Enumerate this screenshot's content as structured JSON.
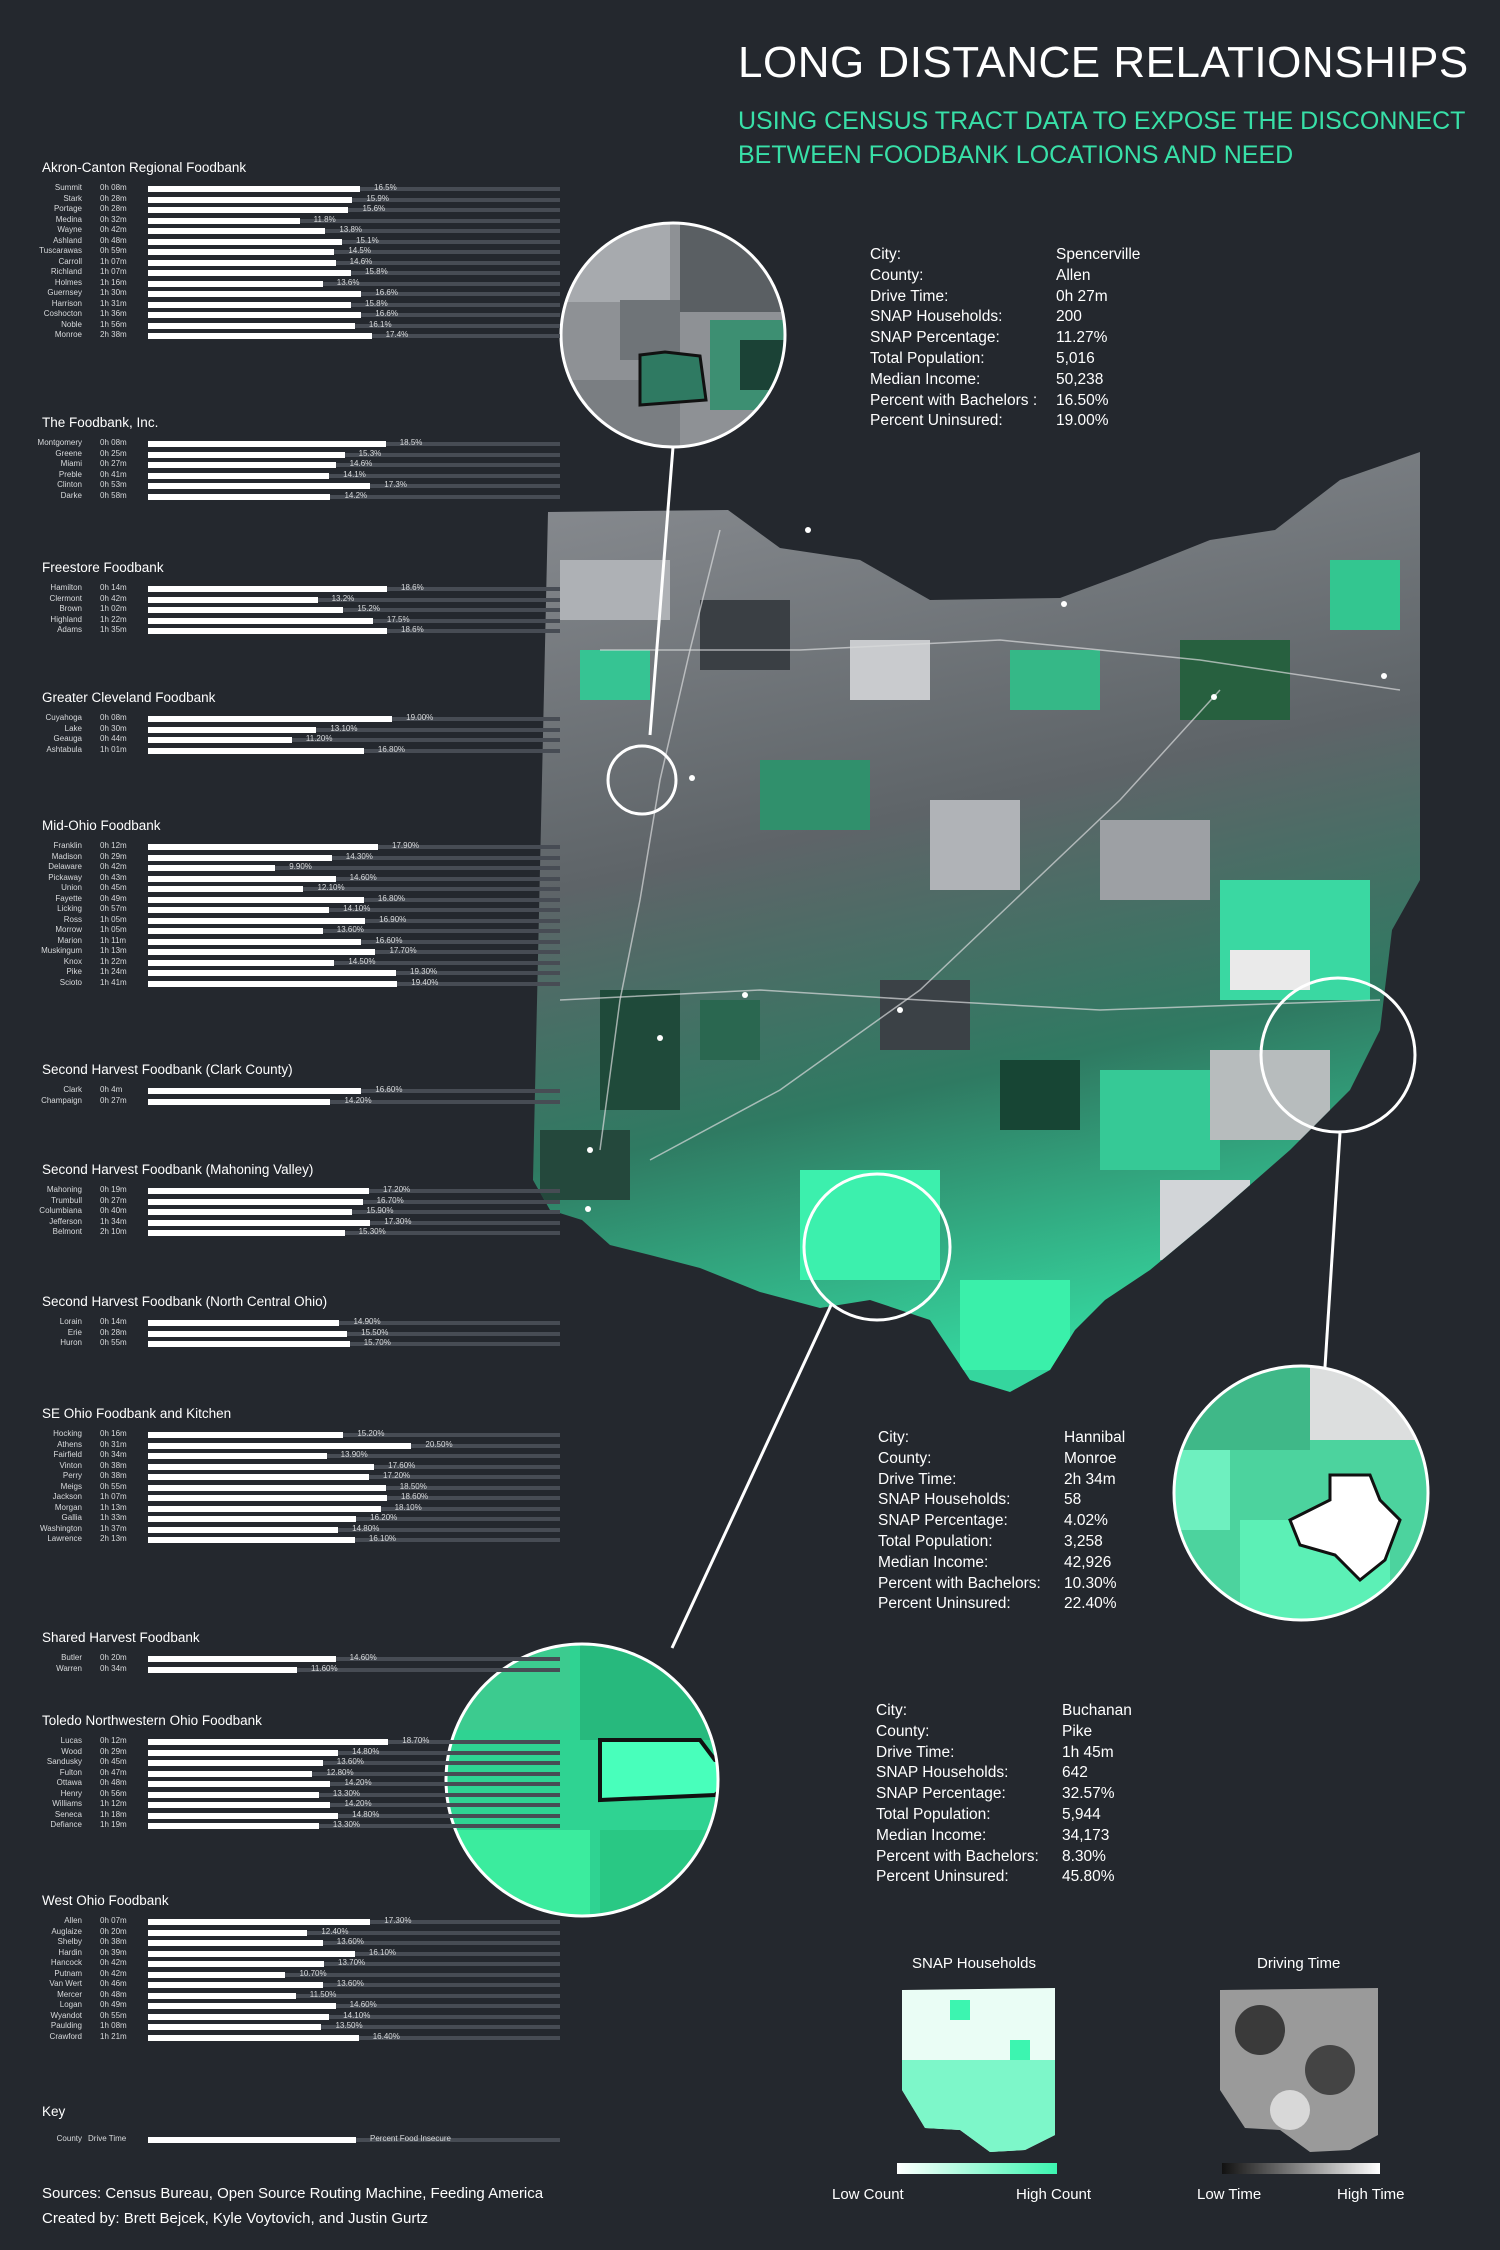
{
  "title": "LONG DISTANCE RELATIONSHIPS",
  "subtitle_lines": [
    "USING CENSUS TRACT DATA TO EXPOSE THE DISCONNECT",
    "BETWEEN FOODBANK LOCATIONS AND NEED"
  ],
  "colors": {
    "background": "#24282e",
    "accent": "#38e0a8",
    "high_green": "#3cf5b0",
    "bar": "#ffffff",
    "track": "#474c54"
  },
  "chart_data": {
    "type": "bar",
    "value_unit": "Percent Food Insecure",
    "foodbanks": [
      {
        "name": "Akron-Canton Regional Foodbank",
        "rows": [
          {
            "county": "Summit",
            "time": "0h 08m",
            "value": 16.5,
            "label": "16.5%"
          },
          {
            "county": "Stark",
            "time": "0h 28m",
            "value": 15.9,
            "label": "15.9%"
          },
          {
            "county": "Portage",
            "time": "0h 28m",
            "value": 15.6,
            "label": "15.6%"
          },
          {
            "county": "Medina",
            "time": "0h 32m",
            "value": 11.8,
            "label": "11.8%"
          },
          {
            "county": "Wayne",
            "time": "0h 42m",
            "value": 13.8,
            "label": "13.8%"
          },
          {
            "county": "Ashland",
            "time": "0h 48m",
            "value": 15.1,
            "label": "15.1%"
          },
          {
            "county": "Tuscarawas",
            "time": "0h 59m",
            "value": 14.5,
            "label": "14.5%"
          },
          {
            "county": "Carroll",
            "time": "1h 07m",
            "value": 14.6,
            "label": "14.6%"
          },
          {
            "county": "Richland",
            "time": "1h 07m",
            "value": 15.8,
            "label": "15.8%"
          },
          {
            "county": "Holmes",
            "time": "1h 16m",
            "value": 13.6,
            "label": "13.6%"
          },
          {
            "county": "Guernsey",
            "time": "1h 30m",
            "value": 16.6,
            "label": "16.6%"
          },
          {
            "county": "Harrison",
            "time": "1h 31m",
            "value": 15.8,
            "label": "15.8%"
          },
          {
            "county": "Coshocton",
            "time": "1h 36m",
            "value": 16.6,
            "label": "16.6%"
          },
          {
            "county": "Noble",
            "time": "1h 56m",
            "value": 16.1,
            "label": "16.1%"
          },
          {
            "county": "Monroe",
            "time": "2h 38m",
            "value": 17.4,
            "label": "17.4%"
          }
        ]
      },
      {
        "name": "The Foodbank, Inc.",
        "rows": [
          {
            "county": "Montgomery",
            "time": "0h 08m",
            "value": 18.5,
            "label": "18.5%"
          },
          {
            "county": "Greene",
            "time": "0h 25m",
            "value": 15.3,
            "label": "15.3%"
          },
          {
            "county": "Miami",
            "time": "0h 27m",
            "value": 14.6,
            "label": "14.6%"
          },
          {
            "county": "Preble",
            "time": "0h 41m",
            "value": 14.1,
            "label": "14.1%"
          },
          {
            "county": "Clinton",
            "time": "0h 53m",
            "value": 17.3,
            "label": "17.3%"
          },
          {
            "county": "Darke",
            "time": "0h 58m",
            "value": 14.2,
            "label": "14.2%"
          }
        ]
      },
      {
        "name": "Freestore Foodbank",
        "rows": [
          {
            "county": "Hamilton",
            "time": "0h 14m",
            "value": 18.6,
            "label": "18.6%"
          },
          {
            "county": "Clermont",
            "time": "0h 42m",
            "value": 13.2,
            "label": "13.2%"
          },
          {
            "county": "Brown",
            "time": "1h 02m",
            "value": 15.2,
            "label": "15.2%"
          },
          {
            "county": "Highland",
            "time": "1h 22m",
            "value": 17.5,
            "label": "17.5%"
          },
          {
            "county": "Adams",
            "time": "1h 35m",
            "value": 18.6,
            "label": "18.6%"
          }
        ]
      },
      {
        "name": "Greater Cleveland Foodbank",
        "rows": [
          {
            "county": "Cuyahoga",
            "time": "0h 08m",
            "value": 19.0,
            "label": "19.00%"
          },
          {
            "county": "Lake",
            "time": "0h 30m",
            "value": 13.1,
            "label": "13.10%"
          },
          {
            "county": "Geauga",
            "time": "0h 44m",
            "value": 11.2,
            "label": "11.20%"
          },
          {
            "county": "Ashtabula",
            "time": "1h 01m",
            "value": 16.8,
            "label": "16.80%"
          }
        ]
      },
      {
        "name": "Mid-Ohio Foodbank",
        "rows": [
          {
            "county": "Franklin",
            "time": "0h 12m",
            "value": 17.9,
            "label": "17.90%"
          },
          {
            "county": "Madison",
            "time": "0h 29m",
            "value": 14.3,
            "label": "14.30%"
          },
          {
            "county": "Delaware",
            "time": "0h 42m",
            "value": 9.9,
            "label": "9.90%"
          },
          {
            "county": "Pickaway",
            "time": "0h 43m",
            "value": 14.6,
            "label": "14.60%"
          },
          {
            "county": "Union",
            "time": "0h 45m",
            "value": 12.1,
            "label": "12.10%"
          },
          {
            "county": "Fayette",
            "time": "0h 49m",
            "value": 16.8,
            "label": "16.80%"
          },
          {
            "county": "Licking",
            "time": "0h 57m",
            "value": 14.1,
            "label": "14.10%"
          },
          {
            "county": "Ross",
            "time": "1h 05m",
            "value": 16.9,
            "label": "16.90%"
          },
          {
            "county": "Morrow",
            "time": "1h 05m",
            "value": 13.6,
            "label": "13.60%"
          },
          {
            "county": "Marion",
            "time": "1h 11m",
            "value": 16.6,
            "label": "16.60%"
          },
          {
            "county": "Muskingum",
            "time": "1h 13m",
            "value": 17.7,
            "label": "17.70%"
          },
          {
            "county": "Knox",
            "time": "1h 22m",
            "value": 14.5,
            "label": "14.50%"
          },
          {
            "county": "Pike",
            "time": "1h 24m",
            "value": 19.3,
            "label": "19.30%"
          },
          {
            "county": "Scioto",
            "time": "1h 41m",
            "value": 19.4,
            "label": "19.40%"
          }
        ]
      },
      {
        "name": "Second Harvest Foodbank (Clark County)",
        "rows": [
          {
            "county": "Clark",
            "time": "0h 4m",
            "value": 16.6,
            "label": "16.60%"
          },
          {
            "county": "Champaign",
            "time": "0h 27m",
            "value": 14.2,
            "label": "14.20%"
          }
        ]
      },
      {
        "name": "Second Harvest Foodbank (Mahoning Valley)",
        "rows": [
          {
            "county": "Mahoning",
            "time": "0h 19m",
            "value": 17.2,
            "label": "17.20%"
          },
          {
            "county": "Trumbull",
            "time": "0h 27m",
            "value": 16.7,
            "label": "16.70%"
          },
          {
            "county": "Columbiana",
            "time": "0h 40m",
            "value": 15.9,
            "label": "15.90%"
          },
          {
            "county": "Jefferson",
            "time": "1h 34m",
            "value": 17.3,
            "label": "17.30%"
          },
          {
            "county": "Belmont",
            "time": "2h 10m",
            "value": 15.3,
            "label": "15.30%"
          }
        ]
      },
      {
        "name": "Second Harvest Foodbank (North Central Ohio)",
        "rows": [
          {
            "county": "Lorain",
            "time": "0h 14m",
            "value": 14.9,
            "label": "14.90%"
          },
          {
            "county": "Erie",
            "time": "0h 28m",
            "value": 15.5,
            "label": "15.50%"
          },
          {
            "county": "Huron",
            "time": "0h 55m",
            "value": 15.7,
            "label": "15.70%"
          }
        ]
      },
      {
        "name": "SE Ohio Foodbank and Kitchen",
        "rows": [
          {
            "county": "Hocking",
            "time": "0h 16m",
            "value": 15.2,
            "label": "15.20%"
          },
          {
            "county": "Athens",
            "time": "0h 31m",
            "value": 20.5,
            "label": "20.50%"
          },
          {
            "county": "Fairfield",
            "time": "0h 34m",
            "value": 13.9,
            "label": "13.90%"
          },
          {
            "county": "Vinton",
            "time": "0h 38m",
            "value": 17.6,
            "label": "17.60%"
          },
          {
            "county": "Perry",
            "time": "0h 38m",
            "value": 17.2,
            "label": "17.20%"
          },
          {
            "county": "Meigs",
            "time": "0h 55m",
            "value": 18.5,
            "label": "18.50%"
          },
          {
            "county": "Jackson",
            "time": "1h 07m",
            "value": 18.6,
            "label": "18.60%"
          },
          {
            "county": "Morgan",
            "time": "1h 13m",
            "value": 18.1,
            "label": "18.10%"
          },
          {
            "county": "Gallia",
            "time": "1h 33m",
            "value": 16.2,
            "label": "16.20%"
          },
          {
            "county": "Washington",
            "time": "1h 37m",
            "value": 14.8,
            "label": "14.80%"
          },
          {
            "county": "Lawrence",
            "time": "2h 13m",
            "value": 16.1,
            "label": "16.10%"
          }
        ]
      },
      {
        "name": "Shared Harvest Foodbank",
        "rows": [
          {
            "county": "Butler",
            "time": "0h 20m",
            "value": 14.6,
            "label": "14.60%"
          },
          {
            "county": "Warren",
            "time": "0h 34m",
            "value": 11.6,
            "label": "11.60%"
          }
        ]
      },
      {
        "name": "Toledo Northwestern Ohio Foodbank",
        "rows": [
          {
            "county": "Lucas",
            "time": "0h 12m",
            "value": 18.7,
            "label": "18.70%"
          },
          {
            "county": "Wood",
            "time": "0h 29m",
            "value": 14.8,
            "label": "14.80%"
          },
          {
            "county": "Sandusky",
            "time": "0h 45m",
            "value": 13.6,
            "label": "13.60%"
          },
          {
            "county": "Fulton",
            "time": "0h 47m",
            "value": 12.8,
            "label": "12.80%"
          },
          {
            "county": "Ottawa",
            "time": "0h 48m",
            "value": 14.2,
            "label": "14.20%"
          },
          {
            "county": "Henry",
            "time": "0h 56m",
            "value": 13.3,
            "label": "13.30%"
          },
          {
            "county": "Williams",
            "time": "1h 12m",
            "value": 14.2,
            "label": "14.20%"
          },
          {
            "county": "Seneca",
            "time": "1h 18m",
            "value": 14.8,
            "label": "14.80%"
          },
          {
            "county": "Defiance",
            "time": "1h 19m",
            "value": 13.3,
            "label": "13.30%"
          }
        ]
      },
      {
        "name": "West Ohio Foodbank",
        "rows": [
          {
            "county": "Allen",
            "time": "0h 07m",
            "value": 17.3,
            "label": "17.30%"
          },
          {
            "county": "Auglaize",
            "time": "0h 20m",
            "value": 12.4,
            "label": "12.40%"
          },
          {
            "county": "Shelby",
            "time": "0h 38m",
            "value": 13.6,
            "label": "13.60%"
          },
          {
            "county": "Hardin",
            "time": "0h 39m",
            "value": 16.1,
            "label": "16.10%"
          },
          {
            "county": "Hancock",
            "time": "0h 42m",
            "value": 13.7,
            "label": "13.70%"
          },
          {
            "county": "Putnam",
            "time": "0h 42m",
            "value": 10.7,
            "label": "10.70%"
          },
          {
            "county": "Van Wert",
            "time": "0h 46m",
            "value": 13.6,
            "label": "13.60%"
          },
          {
            "county": "Mercer",
            "time": "0h 48m",
            "value": 11.5,
            "label": "11.50%"
          },
          {
            "county": "Logan",
            "time": "0h 49m",
            "value": 14.6,
            "label": "14.60%"
          },
          {
            "county": "Wyandot",
            "time": "0h 55m",
            "value": 14.1,
            "label": "14.10%"
          },
          {
            "county": "Paulding",
            "time": "1h 08m",
            "value": 13.5,
            "label": "13.50%"
          },
          {
            "county": "Crawford",
            "time": "1h 21m",
            "value": 16.4,
            "label": "16.40%"
          }
        ]
      }
    ]
  },
  "info_boxes": [
    {
      "rows": [
        [
          "City:",
          "Spencerville"
        ],
        [
          "County:",
          "Allen"
        ],
        [
          "Drive Time:",
          "0h 27m"
        ],
        [
          "SNAP Households:",
          "200"
        ],
        [
          "SNAP Percentage:",
          "11.27%"
        ],
        [
          "Total Population:",
          "5,016"
        ],
        [
          "Median Income:",
          "50,238"
        ],
        [
          "Percent with Bachelors :",
          "16.50%"
        ],
        [
          "Percent Uninsured:",
          "19.00%"
        ]
      ]
    },
    {
      "rows": [
        [
          "City:",
          "Hannibal"
        ],
        [
          "County:",
          "Monroe"
        ],
        [
          "Drive Time:",
          "2h 34m"
        ],
        [
          "SNAP Households:",
          "58"
        ],
        [
          "SNAP Percentage:",
          "4.02%"
        ],
        [
          "Total Population:",
          "3,258"
        ],
        [
          "Median Income:",
          "42,926"
        ],
        [
          "Percent with Bachelors:",
          "10.30%"
        ],
        [
          "Percent Uninsured:",
          "22.40%"
        ]
      ]
    },
    {
      "rows": [
        [
          "City:",
          "Buchanan"
        ],
        [
          "County:",
          "Pike"
        ],
        [
          "Drive Time:",
          "1h 45m"
        ],
        [
          "SNAP Households:",
          "642"
        ],
        [
          "SNAP Percentage:",
          "32.57%"
        ],
        [
          "Total Population:",
          "5,944"
        ],
        [
          "Median Income:",
          "34,173"
        ],
        [
          "Percent with Bachelors:",
          " 8.30%"
        ],
        [
          "Percent Uninsured:",
          "45.80%"
        ]
      ]
    }
  ],
  "minimaps": {
    "snap_title": "SNAP Households",
    "drive_title": "Driving Time"
  },
  "legend": {
    "low_count": "Low Count",
    "high_count": "High Count",
    "low_time": "Low Time",
    "high_time": "High Time"
  },
  "key": {
    "title": "Key",
    "county": "County",
    "drive_time": "Drive Time",
    "value": "Percent Food Insecure"
  },
  "footer": {
    "sources": "Sources: Census Bureau, Open Source Routing Machine, Feeding America",
    "credits": "Created by: Brett Bejcek, Kyle Voytovich, and Justin Gurtz"
  }
}
